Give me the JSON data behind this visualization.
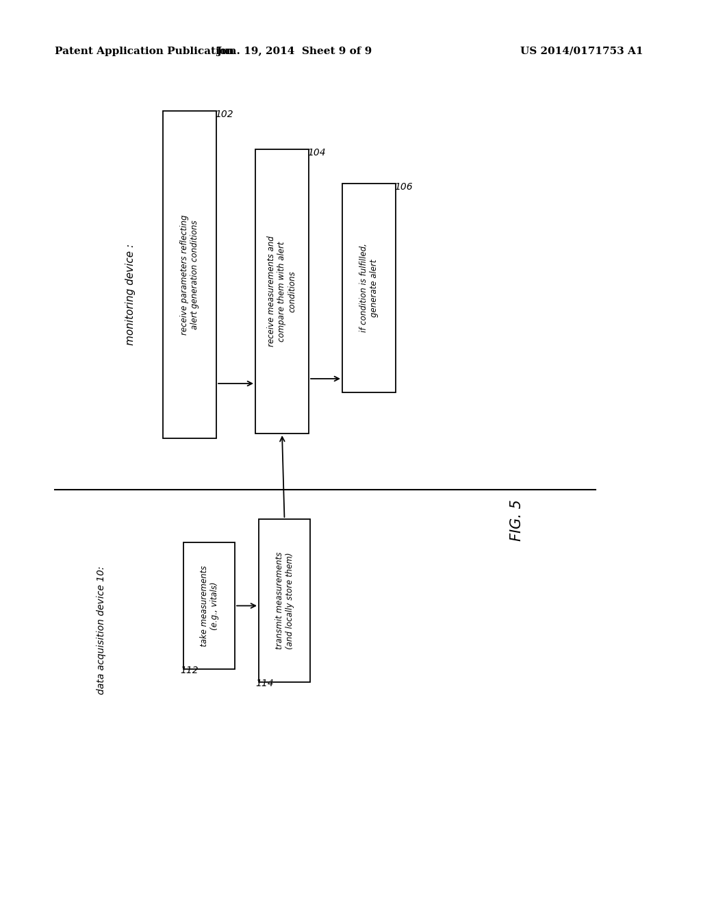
{
  "bg_color": "#ffffff",
  "header_left": "Patent Application Publication",
  "header_center": "Jun. 19, 2014  Sheet 9 of 9",
  "header_right": "US 2014/0171753 A1",
  "fig_label": "FIG. 5",
  "monitoring_device_label": "monitoring device :",
  "data_acq_label": "data acquisition device 10:",
  "box102_text": "receive parameters reflecting\nalert generation conditions",
  "box102_label": "102",
  "box104_text": "receive measurements and\ncompare them with alert\nconditions",
  "box104_label": "104",
  "box106_text": "if condition is fulfilled,\ngenerate alert",
  "box106_label": "106",
  "box112_text": "take measurements\n(e.g., vitals)",
  "box112_label": "112",
  "box114_text": "transmit measurements\n(and locally store them)",
  "box114_label": "114"
}
